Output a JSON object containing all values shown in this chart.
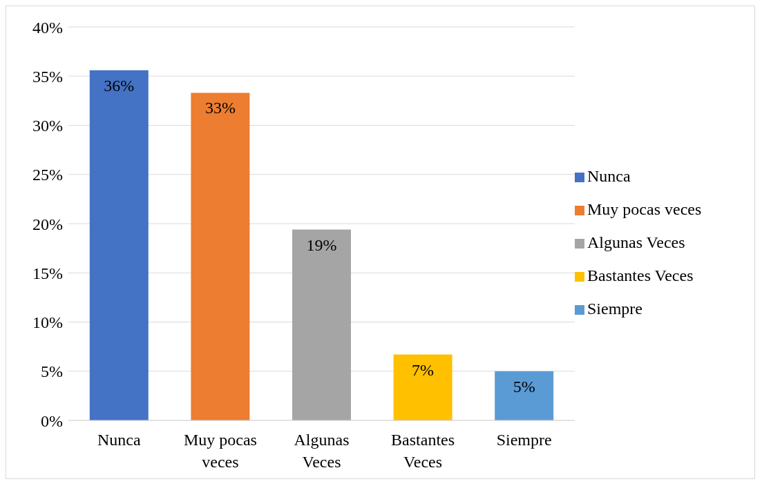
{
  "chart_data": {
    "type": "bar",
    "stacked": true,
    "categories": [
      "Nunca",
      "Muy pocas veces",
      "Algunas Veces",
      "Bastantes Veces",
      "Siempre"
    ],
    "series": [
      {
        "name": "Nunca",
        "color": "#4472c4",
        "values": [
          35.6,
          null,
          null,
          null,
          null
        ],
        "value_labels": [
          "36%",
          null,
          null,
          null,
          null
        ]
      },
      {
        "name": "Muy pocas veces",
        "color": "#ed7d31",
        "values": [
          null,
          33.3,
          null,
          null,
          null
        ],
        "value_labels": [
          null,
          "33%",
          null,
          null,
          null
        ]
      },
      {
        "name": "Algunas Veces",
        "color": "#a5a5a5",
        "values": [
          null,
          null,
          19.4,
          null,
          null
        ],
        "value_labels": [
          null,
          null,
          "19%",
          null,
          null
        ]
      },
      {
        "name": "Bastantes Veces",
        "color": "#ffc000",
        "values": [
          null,
          null,
          null,
          6.7,
          null
        ],
        "value_labels": [
          null,
          null,
          null,
          "7%",
          null
        ]
      },
      {
        "name": "Siempre",
        "color": "#5b9bd5",
        "values": [
          null,
          null,
          null,
          null,
          5
        ],
        "value_labels": [
          null,
          null,
          null,
          null,
          "5%"
        ]
      }
    ],
    "ylim": [
      0,
      40
    ],
    "yticks": [
      {
        "value": 0,
        "label": "0%"
      },
      {
        "value": 5,
        "label": "5%"
      },
      {
        "value": 10,
        "label": "10%"
      },
      {
        "value": 15,
        "label": "15%"
      },
      {
        "value": 20,
        "label": "20%"
      },
      {
        "value": 25,
        "label": "25%"
      },
      {
        "value": 30,
        "label": "30%"
      },
      {
        "value": 35,
        "label": "35%"
      },
      {
        "value": 40,
        "label": "40%"
      }
    ],
    "grid": "y",
    "legend": "right"
  }
}
